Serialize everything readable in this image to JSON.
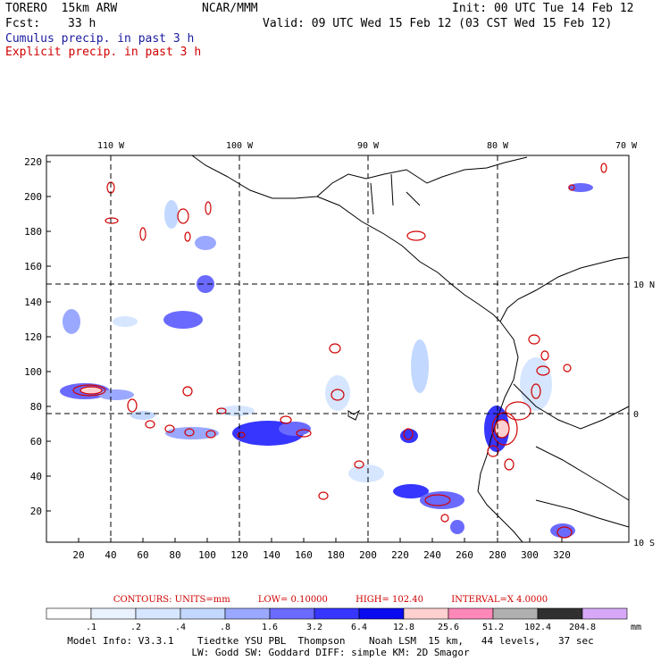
{
  "header": {
    "model": "TORERO  15km ARW",
    "org": "NCAR/MMM",
    "init": "Init: 00 UTC Tue 14 Feb 12",
    "fcst_label": "Fcst:",
    "fcst_value": "33 h",
    "valid": "Valid: 09 UTC Wed 15 Feb 12 (03 CST Wed 15 Feb 12)",
    "cumulus": "Cumulus precip. in past 3 h",
    "explicit": "Explicit precip. in past 3 h"
  },
  "colors": {
    "cumulus": "#1a1aa0",
    "explicit": "#d00000"
  },
  "map": {
    "lon_labels": [
      "110 W",
      "100 W",
      "90 W",
      "80 W",
      "70 W"
    ],
    "lat_labels": [
      "10 N",
      "0",
      "10 S"
    ],
    "y_ticks": [
      "220",
      "200",
      "180",
      "160",
      "140",
      "120",
      "100",
      "80",
      "60",
      "40",
      "20"
    ],
    "x_ticks": [
      "20",
      "40",
      "60",
      "80",
      "100",
      "120",
      "140",
      "160",
      "180",
      "200",
      "220",
      "240",
      "260",
      "280",
      "300",
      "320"
    ]
  },
  "contours": {
    "units": "CONTOURS:  UNITS=mm",
    "low": "LOW= 0.10000",
    "high": "HIGH=  102.40",
    "interval": "INTERVAL=X  4.0000"
  },
  "colorbar": {
    "unit": "mm",
    "labels": [
      ".1",
      ".2",
      ".4",
      ".8",
      "1.6",
      "3.2",
      "6.4",
      "12.8",
      "25.6",
      "51.2",
      "102.4",
      "204.8"
    ],
    "colors": [
      "#ffffff",
      "#eaf2ff",
      "#d6e6ff",
      "#c2d8ff",
      "#9aa8ff",
      "#6a6aff",
      "#3636ff",
      "#0a0af0",
      "#ffd0d0",
      "#ff88b8",
      "#b0b0b0",
      "#303030",
      "#d8a8f8"
    ]
  },
  "footer": {
    "line1": "Model Info: V3.3.1    Tiedtke YSU PBL  Thompson    Noah LSM  15 km,   44 levels,   37 sec",
    "line2": "LW: Godd SW: Goddard DIFF: simple KM: 2D Smagor"
  }
}
